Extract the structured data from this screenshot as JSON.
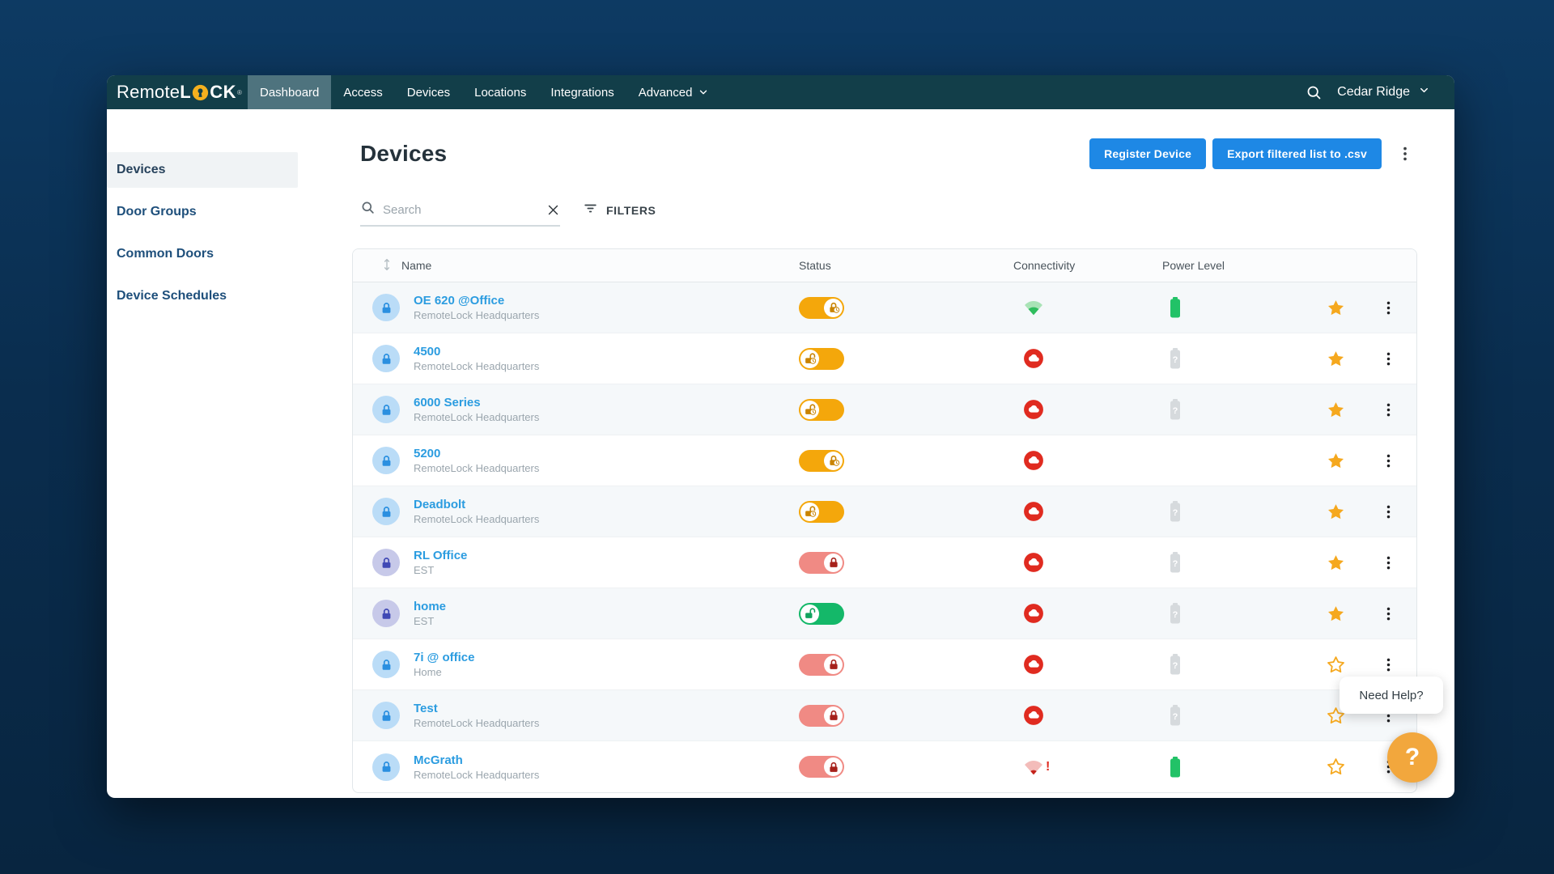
{
  "navbar": {
    "logo": {
      "prefix": "Remote",
      "mid": "L",
      "suffix": "CK",
      "reg": "®"
    },
    "items": [
      {
        "label": "Dashboard",
        "active": true,
        "chevron": false
      },
      {
        "label": "Access",
        "active": false,
        "chevron": false
      },
      {
        "label": "Devices",
        "active": false,
        "chevron": false
      },
      {
        "label": "Locations",
        "active": false,
        "chevron": false
      },
      {
        "label": "Integrations",
        "active": false,
        "chevron": false
      },
      {
        "label": "Advanced",
        "active": false,
        "chevron": true
      }
    ],
    "account": {
      "label": "Cedar Ridge"
    }
  },
  "sidebar": {
    "items": [
      {
        "label": "Devices",
        "active": true
      },
      {
        "label": "Door Groups",
        "active": false
      },
      {
        "label": "Common Doors",
        "active": false
      },
      {
        "label": "Device Schedules",
        "active": false
      }
    ]
  },
  "header": {
    "title": "Devices",
    "buttons": [
      {
        "label": "Register Device"
      },
      {
        "label": "Export filtered list to .csv"
      }
    ]
  },
  "toolbar": {
    "search_placeholder": "Search",
    "filters_label": "FILTERS"
  },
  "table": {
    "columns": [
      "Name",
      "Status",
      "Connectivity",
      "Power Level"
    ],
    "rows": [
      {
        "name": "OE 620 @Office",
        "location": "RemoteLock Headquarters",
        "avatar": "blue",
        "status": {
          "color": "orange",
          "knob": "right",
          "icon": "lock-clock"
        },
        "connectivity": "wifi-strong",
        "power": "full",
        "favorite": true
      },
      {
        "name": "4500",
        "location": "RemoteLock Headquarters",
        "avatar": "blue",
        "status": {
          "color": "orange",
          "knob": "left",
          "icon": "unlock-clock"
        },
        "connectivity": "offline",
        "power": "unknown",
        "favorite": true
      },
      {
        "name": "6000 Series",
        "location": "RemoteLock Headquarters",
        "avatar": "blue",
        "status": {
          "color": "orange",
          "knob": "left",
          "icon": "unlock-clock"
        },
        "connectivity": "offline",
        "power": "unknown",
        "favorite": true
      },
      {
        "name": "5200",
        "location": "RemoteLock Headquarters",
        "avatar": "blue",
        "status": {
          "color": "orange",
          "knob": "right",
          "icon": "lock-clock"
        },
        "connectivity": "offline",
        "power": "none",
        "favorite": true
      },
      {
        "name": "Deadbolt",
        "location": "RemoteLock Headquarters",
        "avatar": "blue",
        "status": {
          "color": "orange",
          "knob": "left",
          "icon": "unlock-clock"
        },
        "connectivity": "offline",
        "power": "unknown",
        "favorite": true
      },
      {
        "name": "RL Office",
        "location": "EST",
        "avatar": "purple",
        "status": {
          "color": "red",
          "knob": "right",
          "icon": "lock"
        },
        "connectivity": "offline",
        "power": "unknown",
        "favorite": true
      },
      {
        "name": "home",
        "location": "EST",
        "avatar": "purple",
        "status": {
          "color": "green",
          "knob": "left",
          "icon": "unlock"
        },
        "connectivity": "offline",
        "power": "unknown",
        "favorite": true
      },
      {
        "name": "7i @ office",
        "location": "Home",
        "avatar": "blue",
        "status": {
          "color": "red",
          "knob": "right",
          "icon": "lock"
        },
        "connectivity": "offline",
        "power": "unknown",
        "favorite": false
      },
      {
        "name": "Test",
        "location": "RemoteLock Headquarters",
        "avatar": "blue",
        "status": {
          "color": "red",
          "knob": "right",
          "icon": "lock"
        },
        "connectivity": "offline",
        "power": "unknown",
        "favorite": false
      },
      {
        "name": "McGrath",
        "location": "RemoteLock Headquarters",
        "avatar": "blue",
        "status": {
          "color": "red",
          "knob": "right",
          "icon": "lock"
        },
        "connectivity": "wifi-weak-alert",
        "power": "full",
        "favorite": false
      }
    ]
  },
  "help": {
    "tooltip": "Need Help?",
    "button_label": "?"
  },
  "colors": {
    "navbar": "#123e49",
    "nav_active": "#4e737e",
    "accent_blue": "#1e88e5",
    "link_blue": "#2b9ce0",
    "sidebar_blue": "#1e4f7b",
    "toggle_orange": "#f4a70b",
    "toggle_orange_icon": "#c98300",
    "toggle_red": "#f08a84",
    "toggle_red_icon": "#a6211b",
    "toggle_green": "#14b869",
    "toggle_green_icon": "#12a35e",
    "star_orange": "#f5a81e",
    "battery_green": "#22c267",
    "battery_gray": "#d6dadd",
    "offline_red": "#e02b20",
    "wifi_green": "#2fbd5d",
    "wifi_green_light": "#a9e3b6",
    "wifi_red": "#c4231b",
    "wifi_red_light": "#f3bcba",
    "avatar_blue_bg": "#badcf7",
    "avatar_blue_icon": "#2a8fe0",
    "avatar_purple_bg": "#c7c9e9",
    "avatar_purple_icon": "#4049b5",
    "logo_yellow": "#f5b01e",
    "help_orange": "#f2a73d"
  }
}
